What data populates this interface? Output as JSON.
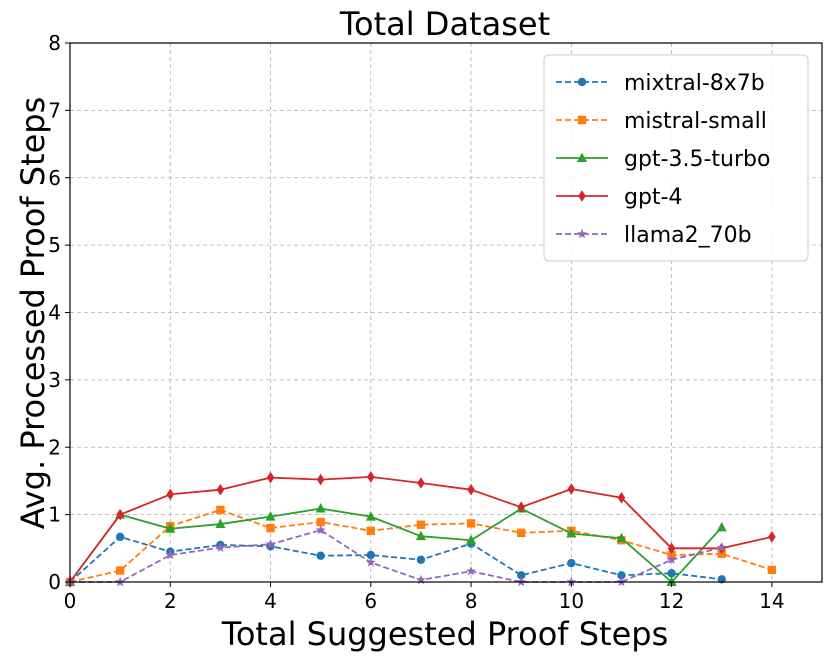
{
  "chart_data": {
    "type": "line",
    "title": "Total Dataset",
    "xlabel": "Total Suggested Proof Steps",
    "ylabel": "Avg. Processed Proof Steps",
    "xlim": [
      0,
      15
    ],
    "ylim": [
      0,
      8
    ],
    "xticks": [
      0,
      2,
      4,
      6,
      8,
      10,
      12,
      14
    ],
    "yticks": [
      0,
      1,
      2,
      3,
      4,
      5,
      6,
      7,
      8
    ],
    "grid": true,
    "legend_position": "top-right",
    "series": [
      {
        "name": "mixtral-8x7b",
        "color": "#1f77b4",
        "linestyle": "dashed",
        "marker": "circle",
        "x": [
          0,
          1,
          2,
          3,
          4,
          5,
          6,
          7,
          8,
          9,
          10,
          11,
          12,
          13
        ],
        "y": [
          0,
          0.67,
          0.45,
          0.55,
          0.53,
          0.39,
          0.4,
          0.33,
          0.57,
          0.1,
          0.28,
          0.1,
          0.13,
          0.04
        ]
      },
      {
        "name": "mistral-small",
        "color": "#ff7f0e",
        "linestyle": "dashed",
        "marker": "square",
        "x": [
          0,
          1,
          2,
          3,
          4,
          5,
          6,
          7,
          8,
          9,
          10,
          11,
          12,
          13,
          14
        ],
        "y": [
          0,
          0.17,
          0.83,
          1.07,
          0.8,
          0.89,
          0.76,
          0.85,
          0.87,
          0.73,
          0.76,
          0.62,
          0.4,
          0.42,
          0.18
        ]
      },
      {
        "name": "gpt-3.5-turbo",
        "color": "#2ca02c",
        "linestyle": "solid",
        "marker": "triangle",
        "x": [
          0,
          1,
          2,
          3,
          4,
          5,
          6,
          7,
          8,
          9,
          10,
          11,
          12,
          13
        ],
        "y": [
          0,
          1.0,
          0.79,
          0.86,
          0.97,
          1.09,
          0.97,
          0.68,
          0.62,
          1.09,
          0.72,
          0.65,
          0.0,
          0.81
        ]
      },
      {
        "name": "gpt-4",
        "color": "#d62728",
        "linestyle": "solid",
        "marker": "diamond",
        "x": [
          0,
          1,
          2,
          3,
          4,
          5,
          6,
          7,
          8,
          9,
          10,
          11,
          12,
          13,
          14
        ],
        "y": [
          0,
          1.0,
          1.3,
          1.37,
          1.55,
          1.52,
          1.56,
          1.47,
          1.37,
          1.11,
          1.38,
          1.25,
          0.5,
          0.5,
          0.67
        ]
      },
      {
        "name": "llama2_70b",
        "color": "#9467bd",
        "linestyle": "dashed",
        "marker": "star",
        "x": [
          0,
          1,
          2,
          3,
          4,
          5,
          6,
          7,
          8,
          9,
          10,
          11,
          12,
          13
        ],
        "y": [
          0,
          0.0,
          0.4,
          0.51,
          0.56,
          0.77,
          0.29,
          0.03,
          0.16,
          0.0,
          0.0,
          0.0,
          0.33,
          0.51
        ]
      }
    ]
  }
}
